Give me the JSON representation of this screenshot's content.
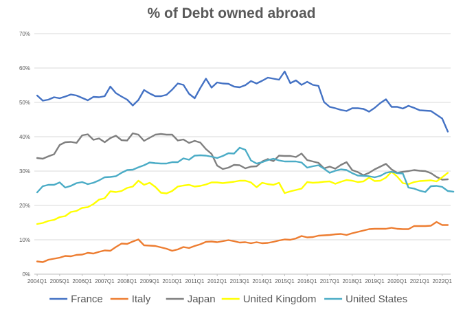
{
  "chart_data": {
    "type": "line",
    "title": "% of Debt owned abroad",
    "xlabel": "",
    "ylabel": "",
    "ylim": [
      0,
      70
    ],
    "yticks": [
      0,
      10,
      20,
      30,
      40,
      50,
      60,
      70
    ],
    "ytick_suffix": "%",
    "grid": "horizontal",
    "legend_position": "bottom",
    "x_start": "2004Q1",
    "xtick_labels": [
      "2004Q1",
      "2005Q1",
      "2006Q1",
      "2007Q1",
      "2008Q1",
      "2009Q1",
      "2010Q1",
      "2011Q1",
      "2012Q1",
      "2013Q1",
      "2014Q1",
      "2015Q1",
      "2016Q1",
      "2017Q1",
      "2018Q1",
      "2019Q1",
      "2020Q1",
      "2021Q1",
      "2022Q1"
    ],
    "series": [
      {
        "name": "France",
        "color": "#4472C4",
        "values": [
          52,
          50.5,
          50.8,
          51.5,
          51.2,
          51.7,
          52.3,
          52,
          51.3,
          50.6,
          51.6,
          51.5,
          51.8,
          54.6,
          52.7,
          51.7,
          50.8,
          49.1,
          50.7,
          53.6,
          52.6,
          51.8,
          51.8,
          52.2,
          53.7,
          55.5,
          55.1,
          52.5,
          51.2,
          54.2,
          56.9,
          54.3,
          55.8,
          55.5,
          55.4,
          54.6,
          54.4,
          55,
          56.2,
          55.5,
          56.3,
          57.2,
          56.9,
          56.6,
          59,
          55.6,
          56.4,
          55.1,
          56,
          55.1,
          54.8,
          50.1,
          48.7,
          48.3,
          47.8,
          47.5,
          48.3,
          48.3,
          48.1,
          47.3,
          48.4,
          49.8,
          50.9,
          48.7,
          48.7,
          48.2,
          49,
          48.4,
          47.7,
          47.6,
          47.5,
          46.4,
          45.3,
          41.5
        ]
      },
      {
        "name": "Italy",
        "color": "#ED7D31",
        "values": [
          3.7,
          3.5,
          4.2,
          4.5,
          4.8,
          5.3,
          5.2,
          5.6,
          5.7,
          6.2,
          6,
          6.5,
          6.9,
          6.8,
          7.9,
          8.9,
          8.8,
          9.5,
          10.1,
          8.4,
          8.3,
          8.2,
          7.8,
          7.4,
          6.8,
          7.2,
          7.9,
          7.6,
          8.2,
          8.7,
          9.4,
          9.5,
          9.3,
          9.6,
          9.9,
          9.6,
          9.2,
          9.3,
          9,
          9.3,
          9,
          9.1,
          9.4,
          9.8,
          10.1,
          10,
          10.4,
          11.1,
          10.7,
          10.8,
          11.2,
          11.3,
          11.4,
          11.6,
          11.7,
          11.4,
          11.9,
          12.3,
          12.7,
          13.1,
          13.2,
          13.2,
          13.2,
          13.5,
          13.2,
          13.1,
          13.1,
          14,
          14,
          14,
          14.1,
          15.2,
          14.3,
          14.3
        ]
      },
      {
        "name": "Japan",
        "color": "#7F7F7F",
        "values": [
          33.8,
          33.6,
          34.3,
          34.9,
          37.6,
          38.4,
          38.5,
          38.2,
          40.4,
          40.7,
          39.1,
          39.5,
          38.4,
          39.6,
          40.3,
          39,
          38.9,
          41,
          40.6,
          38.8,
          39.7,
          40.6,
          40.8,
          40.6,
          40.6,
          38.9,
          39.2,
          38.2,
          38.8,
          38.3,
          36.4,
          35,
          31.6,
          30.6,
          31,
          31.8,
          31.7,
          30.8,
          31.3,
          31.4,
          32.8,
          33.5,
          32.9,
          34.5,
          34.4,
          34.4,
          34.1,
          35.1,
          33.2,
          32.8,
          32.4,
          30.8,
          31.3,
          30.7,
          31.8,
          32.6,
          30.3,
          29.7,
          28.8,
          29.5,
          30.5,
          31.3,
          32.1,
          30.5,
          29.5,
          29.8,
          30,
          30.3,
          30.1,
          30,
          29.4,
          28.3,
          27.5,
          27.6
        ]
      },
      {
        "name": "United Kingdom",
        "color": "#FFFF00",
        "values": [
          14.6,
          14.9,
          15.5,
          15.8,
          16.6,
          16.9,
          18.1,
          18.4,
          19.3,
          19.5,
          20.4,
          21.7,
          22.1,
          24.1,
          23.9,
          24.2,
          25.1,
          25.5,
          27.2,
          26,
          26.6,
          25.4,
          23.7,
          23.5,
          24.2,
          25.5,
          25.8,
          26,
          25.5,
          25.7,
          26.1,
          26.7,
          26.7,
          26.5,
          26.7,
          26.9,
          27.2,
          27.2,
          26.7,
          25.3,
          26.6,
          26.2,
          26,
          26.6,
          23.6,
          24.1,
          24.5,
          24.9,
          26.8,
          26.6,
          26.7,
          26.9,
          27,
          26.3,
          26.9,
          27.4,
          27.2,
          26.8,
          27,
          28.1,
          27.1,
          27.2,
          28.1,
          29.8,
          28.4,
          26.5,
          26.2,
          26.8,
          27.1,
          27.2,
          27.3,
          27,
          28.2,
          29.5
        ]
      },
      {
        "name": "United States",
        "color": "#4BACC6",
        "values": [
          23.8,
          25.6,
          26,
          26,
          26.7,
          25.2,
          25.7,
          26.5,
          26.8,
          26.2,
          26.6,
          27.3,
          28.2,
          28.3,
          28.5,
          29.5,
          30.3,
          30.4,
          31.1,
          31.7,
          32.5,
          32.3,
          32.2,
          32.2,
          32.6,
          32.6,
          33.7,
          33.3,
          34.5,
          34.6,
          34.5,
          34.2,
          33.8,
          34.4,
          35.2,
          35.1,
          36.8,
          36.2,
          33.1,
          32.2,
          32.6,
          33.2,
          33.6,
          33.1,
          32.8,
          32.8,
          32.8,
          32.5,
          31,
          31.4,
          31.7,
          30.7,
          29.5,
          30.1,
          30.5,
          30.3,
          29.4,
          28.7,
          28.6,
          28.5,
          28.2,
          28.6,
          29.5,
          29.8,
          29.4,
          29.3,
          25.2,
          24.9,
          24.3,
          23.9,
          25.6,
          25.7,
          25.4,
          24.2,
          24
        ]
      }
    ]
  }
}
